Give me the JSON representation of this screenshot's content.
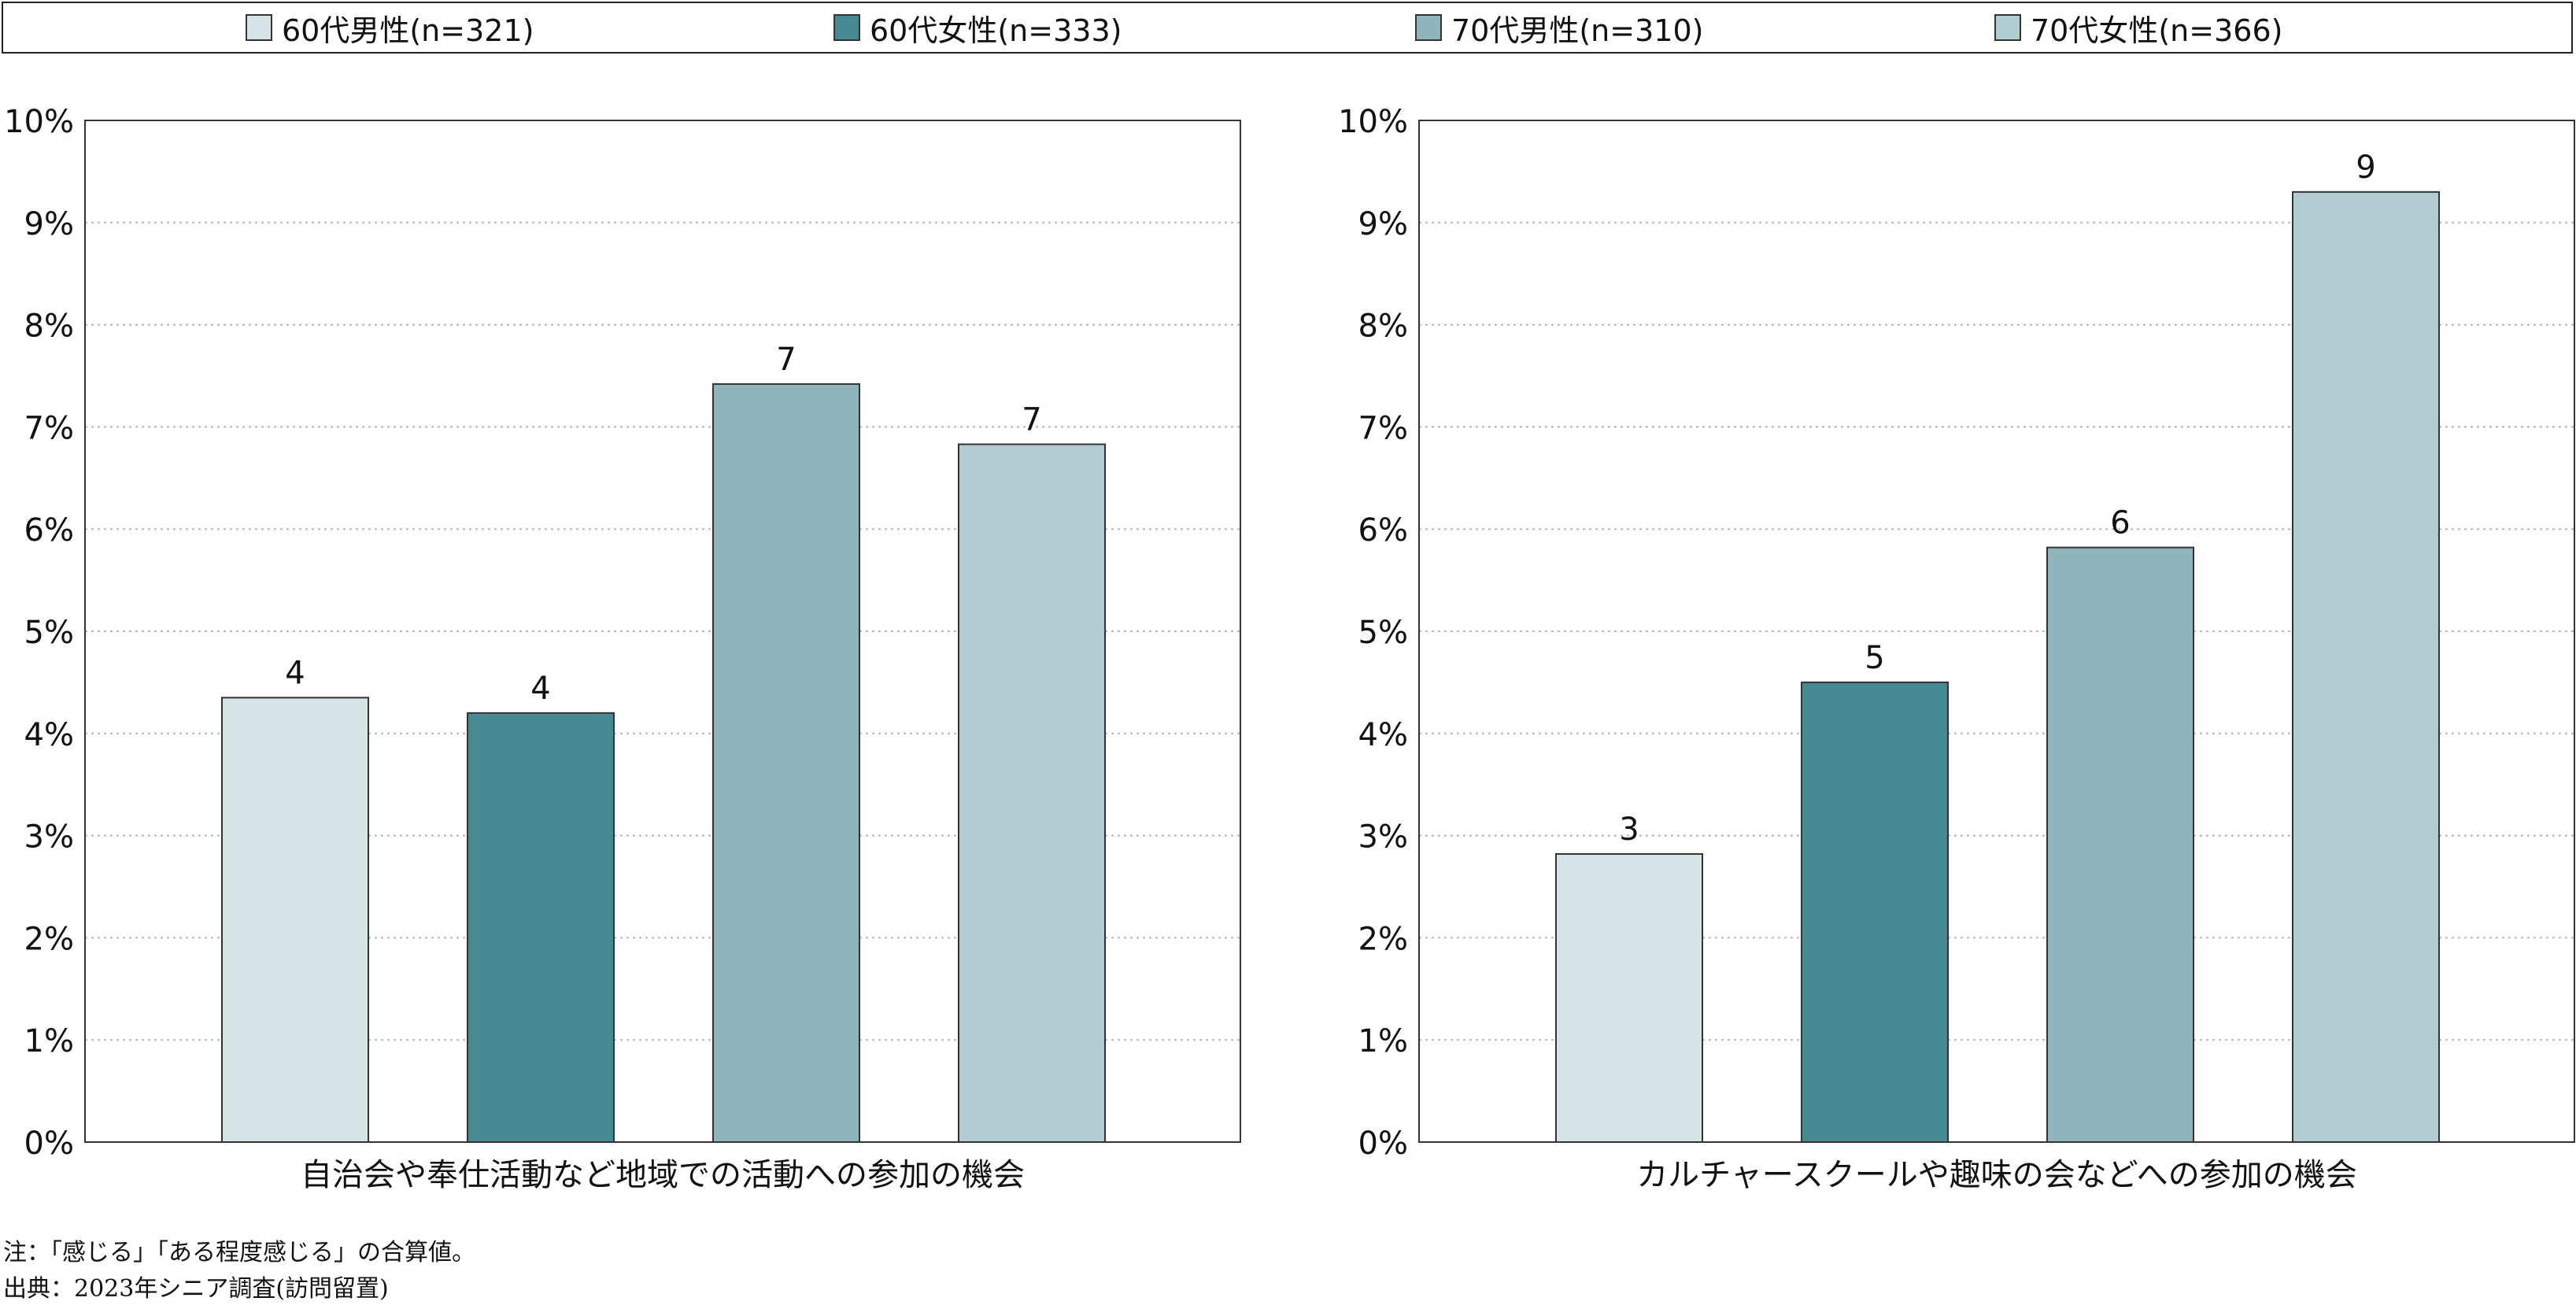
{
  "legend": [
    {
      "label": "60代男性(n=321)",
      "color": "#d7e4e6"
    },
    {
      "label": "60代女性(n=333)",
      "color": "#478a93"
    },
    {
      "label": "70代男性(n=310)",
      "color": "#8fb4b9"
    },
    {
      "label": "70代女性(n=366)",
      "color": "#b2cdd1"
    }
  ],
  "chart_data": [
    {
      "type": "bar",
      "categories": [
        "自治会や奉仕活動など地域での活動への参加の機会"
      ],
      "xlabel": "自治会や奉仕活動など地域での活動への参加の機会",
      "ylim": [
        0,
        10
      ],
      "yticks": [
        "0%",
        "1%",
        "2%",
        "3%",
        "4%",
        "5%",
        "6%",
        "7%",
        "8%",
        "9%",
        "10%"
      ],
      "grid": true,
      "series": [
        {
          "name": "60代男性(n=321)",
          "values": [
            4.35
          ],
          "label": "4"
        },
        {
          "name": "60代女性(n=333)",
          "values": [
            4.2
          ],
          "label": "4"
        },
        {
          "name": "70代男性(n=310)",
          "values": [
            7.42
          ],
          "label": "7"
        },
        {
          "name": "70代女性(n=366)",
          "values": [
            6.83
          ],
          "label": "7"
        }
      ]
    },
    {
      "type": "bar",
      "categories": [
        "カルチャースクールや趣味の会などへの参加の機会"
      ],
      "xlabel": "カルチャースクールや趣味の会などへの参加の機会",
      "ylim": [
        0,
        10
      ],
      "yticks": [
        "0%",
        "1%",
        "2%",
        "3%",
        "4%",
        "5%",
        "6%",
        "7%",
        "8%",
        "9%",
        "10%"
      ],
      "grid": true,
      "series": [
        {
          "name": "60代男性(n=321)",
          "values": [
            2.82
          ],
          "label": "3"
        },
        {
          "name": "60代女性(n=333)",
          "values": [
            4.5
          ],
          "label": "5"
        },
        {
          "name": "70代男性(n=310)",
          "values": [
            5.82
          ],
          "label": "6"
        },
        {
          "name": "70代女性(n=366)",
          "values": [
            9.3
          ],
          "label": "9"
        }
      ]
    }
  ],
  "notes": {
    "note": "注：「感じる」「ある程度感じる」の合算値。",
    "source": "出典：2023年シニア調査(訪問留置)"
  }
}
